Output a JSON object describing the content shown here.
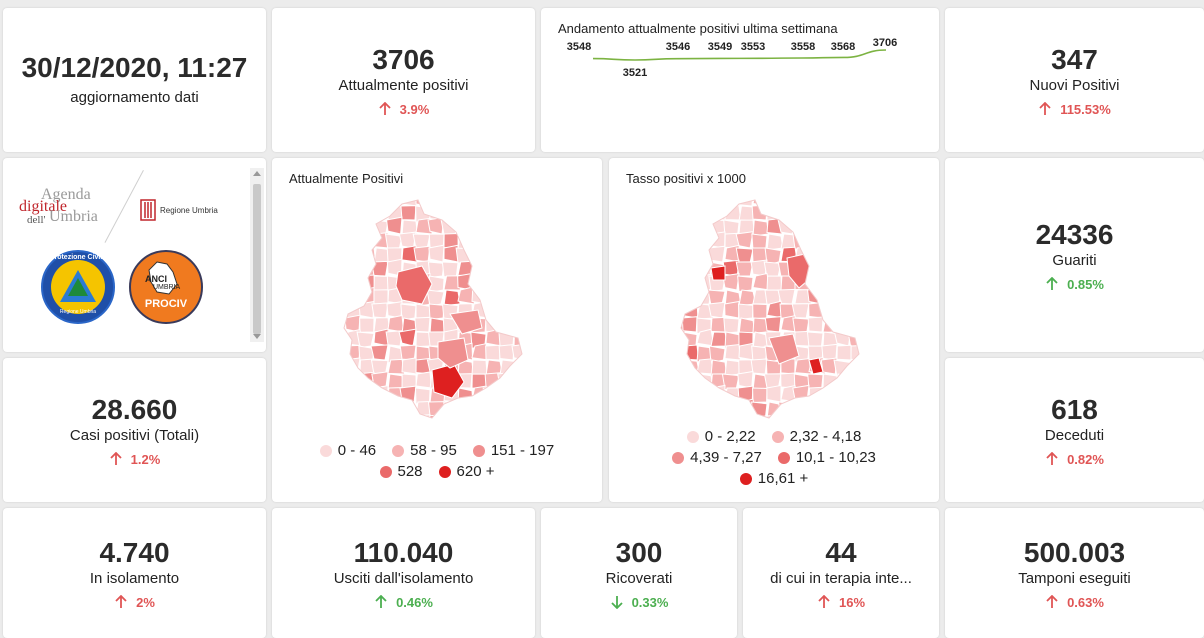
{
  "update": {
    "datetime": "30/12/2020, 11:27",
    "label": "aggiornamento dati"
  },
  "attualmente_positivi": {
    "value": "3706",
    "label": "Attualmente positivi",
    "delta": "3.9%",
    "trend": "up",
    "color": "#e05555"
  },
  "trend_chart": {
    "title": "Andamento attualmente positivi ultima settimana",
    "chart_data": {
      "type": "line",
      "title": "Andamento attualmente positivi ultima settimana",
      "xlabel": "",
      "ylabel": "",
      "values": [
        3548,
        3521,
        3546,
        3549,
        3553,
        3558,
        3568,
        3706
      ],
      "labels": [
        "3548",
        "3521",
        "3546",
        "3549",
        "3553",
        "3558",
        "3568",
        "3706"
      ],
      "line_color": "#7cb342"
    }
  },
  "nuovi_positivi": {
    "value": "347",
    "label": "Nuovi Positivi",
    "delta": "115.53%",
    "trend": "up",
    "color": "#e05555"
  },
  "logos": {
    "agenda_line1": "Agenda",
    "agenda_line2": "digitale",
    "agenda_line3a": "dell'",
    "agenda_line3b": "Umbria",
    "regione": "Regione Umbria",
    "protezione": "Protezione Civile",
    "protezione_sub": "Regione Umbria",
    "anci": "ANCI",
    "anci_sub": "UMBRIA",
    "prociv": "PROCIV"
  },
  "map1": {
    "title": "Attualmente Positivi",
    "legend": [
      {
        "label": "0 - 46",
        "color": "#fadada"
      },
      {
        "label": "58 - 95",
        "color": "#f6b3b3"
      },
      {
        "label": "151 - 197",
        "color": "#ef8f8f"
      },
      {
        "label": "528",
        "color": "#ea6a6a"
      },
      {
        "label": "620 +",
        "color": "#de2020"
      }
    ]
  },
  "map2": {
    "title": "Tasso positivi x 1000",
    "legend": [
      {
        "label": "0 - 2,22",
        "color": "#fadada"
      },
      {
        "label": "2,32 - 4,18",
        "color": "#f6b3b3"
      },
      {
        "label": "4,39 - 7,27",
        "color": "#ef8f8f"
      },
      {
        "label": "10,1 - 10,23",
        "color": "#ea6a6a"
      },
      {
        "label": "16,61 +",
        "color": "#de2020"
      }
    ]
  },
  "guariti": {
    "value": "24336",
    "label": "Guariti",
    "delta": "0.85%",
    "trend": "up",
    "color": "#4caf50"
  },
  "casi_totali": {
    "value": "28.660",
    "label": "Casi positivi (Totali)",
    "delta": "1.2%",
    "trend": "up",
    "color": "#e05555"
  },
  "deceduti": {
    "value": "618",
    "label": "Deceduti",
    "delta": "0.82%",
    "trend": "up",
    "color": "#e05555"
  },
  "isolamento": {
    "value": "4.740",
    "label": "In isolamento",
    "delta": "2%",
    "trend": "up",
    "color": "#e05555"
  },
  "usciti": {
    "value": "110.040",
    "label": "Usciti dall'isolamento",
    "delta": "0.46%",
    "trend": "up",
    "color": "#4caf50"
  },
  "ricoverati": {
    "value": "300",
    "label": "Ricoverati",
    "delta": "0.33%",
    "trend": "down",
    "color": "#4caf50"
  },
  "terapia": {
    "value": "44",
    "label": "di cui in terapia inte...",
    "delta": "16%",
    "trend": "up",
    "color": "#e05555"
  },
  "tamponi": {
    "value": "500.003",
    "label": "Tamponi eseguiti",
    "delta": "0.63%",
    "trend": "up",
    "color": "#e05555"
  }
}
